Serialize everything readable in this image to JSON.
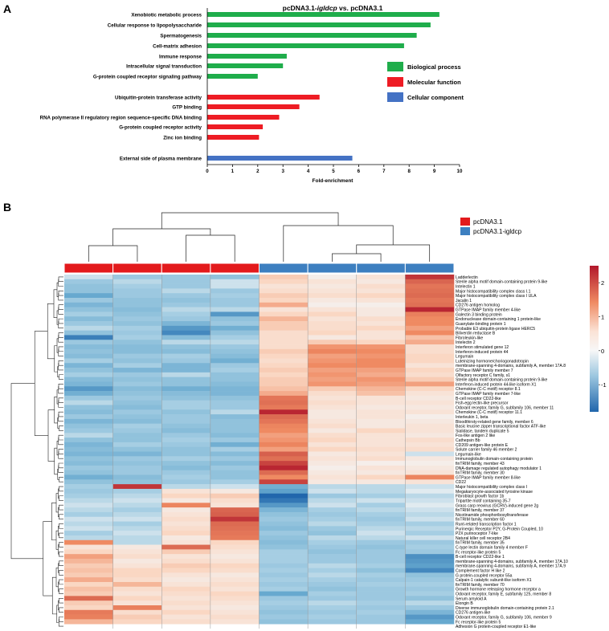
{
  "panel_a": {
    "label": "A",
    "title_prefix": "pcDNA3.1-",
    "title_italic": "igldcp",
    "title_suffix": " vs. pcDNA3.1",
    "xlabel": "Fold-enrichment"
  },
  "panel_b": {
    "label": "B"
  },
  "colors": {
    "bp": "#1fad4b",
    "mf": "#ee1c24",
    "cc": "#4472c4",
    "control": "#e31a1c",
    "treated": "#3d7fc0"
  },
  "chart_data": [
    {
      "type": "bar",
      "orientation": "horizontal",
      "xlim": [
        0,
        10
      ],
      "xticks": [
        "0",
        "1",
        "2",
        "3",
        "4",
        "5",
        "6",
        "7",
        "8",
        "9",
        "10"
      ],
      "xlabel": "Fold-enrichment",
      "legend": {
        "placement": "right",
        "entries": [
          "Biological process",
          "Molecular function",
          "Cellular component"
        ]
      },
      "series": [
        {
          "name": "Biological process",
          "categories": [
            "Xenobiotic metabolic process",
            "Cellular response to lipopolysaccharide",
            "Spermatogenesis",
            "Cell-matrix adhesion",
            "Immune response",
            "Intracellular signal transduction",
            "G-protein coupled receptor signaling pathway"
          ],
          "values": [
            9.2,
            8.85,
            8.3,
            7.8,
            3.15,
            3.0,
            2.0
          ]
        },
        {
          "name": "Molecular function",
          "categories": [
            "Ubiquitin-protein transferase activity",
            "GTP binding",
            "RNA polymerase II regulatory region sequence-specific DNA binding",
            "G-protein coupled receptor activity",
            "Zinc ion binding"
          ],
          "values": [
            4.45,
            3.65,
            2.85,
            2.2,
            2.05
          ]
        },
        {
          "name": "Cellular component",
          "categories": [
            "External side of plasma membrane"
          ],
          "values": [
            5.75
          ]
        }
      ]
    },
    {
      "type": "heatmap",
      "legend": [
        "pcDNA3.1",
        "pcDNA3.1-igldcp"
      ],
      "column_groups": [
        "pcDNA3.1",
        "pcDNA3.1",
        "pcDNA3.1",
        "pcDNA3.1",
        "pcDNA3.1-igldcp",
        "pcDNA3.1-igldcp",
        "pcDNA3.1-igldcp",
        "pcDNA3.1-igldcp"
      ],
      "colorbar": {
        "min": -1.8,
        "max": 2.5,
        "ticks": [
          "2",
          "1",
          "0",
          "-1"
        ]
      },
      "rows": [
        "Ladderlectin",
        "Sterile alpha motif domain-containing protein 9-like",
        "Intelectin 1",
        "Major histocompatibility complex class I.1",
        "Major histocompatibility complex class I ULA",
        "Jacalin 1",
        "CD276 antigen homolog",
        "GTPase IMAP family member 4-like",
        "Galectin 3 binding protein",
        "Endonuclease domain-containing 1 protein-like",
        "Guanylate-binding protein 1",
        "Probable E3 ubiquitin-protein ligase HERC5",
        "Biliverdin reductase B",
        "Fibroleukin-like",
        "Intelectin 2",
        "Interferon stimulated gene 12",
        "Interferon-induced protein 44",
        "Legumain",
        "Luteinizing hormone/choriogonadotropin",
        "membrane-spanning 4-domains, subfamily A, member 17A.8",
        "GTPase IMAP family member 7",
        "Olfactory receptor C family, s1",
        "Sterile alpha motif domain-containing protein 9-like",
        "Interferon-induced protein 44-like isoform X1",
        "Chemokine (C-C motif) receptor 8.1",
        "GTPase IMAP family member 7-like",
        "B-cell receptor CD22-like",
        "Fish-egg lectin-like precursor",
        "Odorant receptor, family G, subfamily 106, member 11",
        "Chemokine (C-C motif) receptor 11.1",
        "Interleukin 1, beta",
        "Bloodthirsty-related gene family, member 6",
        "Basic leucine zipper transcriptional factor ATF-like",
        "Sialidase, tandem duplicate 5",
        "Fos-like antigen 2 like",
        "Cathepsin Bb",
        "CD209 antigen-like protein E",
        "Solute carrier family 46 member 2",
        "Legumain-like",
        "Immunoglobulin domain-containing protein",
        "finTRIM family, member 43",
        "DNA-damage regulated autophagy modulator 1",
        "finTRIM family, member 30",
        "GTPase IMAP family member 8-like",
        "CD22",
        "Major histocompatibility complex class I",
        "Megakaryocyte-associated tyrosine kinase",
        "Fibroblast growth factor 1b",
        "Tripartite motif containing 35-7",
        "Grass carp reovirus (GCRV)-induced gene 2g",
        "finTRIM family, member 37",
        "Nicotinamide phosphoribosyltransferase",
        "finTRIM family, member 60",
        "Runt-related transcription factor 1",
        "Purinergic Receptor P2Y, G-Protein Coupled, 10",
        "P2X purinoceptor 7-like",
        "Natural killer cell receptor 2B4",
        "finTRIM family, member 35",
        "C-type lectin domain family 4 member F",
        "Fc receptor-like protein 5",
        "B-cell receptor CD22-like 1",
        "membrane-spanning 4-domains, subfamily A, member 17A.10",
        "membrane-spanning 4-domains, subfamily A, member 17A.9",
        "Complement factor H like 2",
        "G protein-coupled receptor 55a",
        "Calpain-1 catalytic subunit-like isoform X1",
        "finTRIM family, member 70",
        "Growth hormone releasing hormone receptor a",
        "Odorant receptor, family E, subfamily 125, member 8",
        "Serum amyloid A",
        "Elongin B",
        "Diverse immunoglobulin domain-containing protein 2.1",
        "CD276 antigen-like",
        "Odorant receptor, family G, subfamily 106, member 9",
        "Fc receptor-like protein 5",
        "Adhesion G protein-coupled receptor E1-like"
      ],
      "values": [
        [
          -0.2,
          -0.5,
          -0.5,
          -0.6,
          0.6,
          0.1,
          0.3,
          2.3
        ],
        [
          -0.5,
          -0.3,
          -0.5,
          -0.2,
          0.5,
          0.3,
          0.2,
          1.9
        ],
        [
          -0.6,
          -0.4,
          -0.5,
          -0.2,
          0.3,
          0.2,
          0.4,
          1.6
        ],
        [
          -0.6,
          -0.5,
          -0.3,
          -0.5,
          0.4,
          0.3,
          0.3,
          1.7
        ],
        [
          -1.0,
          -0.5,
          -0.5,
          -0.4,
          0.6,
          0.4,
          0.5,
          1.8
        ],
        [
          -0.5,
          -0.6,
          -0.6,
          -0.5,
          0.5,
          0.2,
          0.3,
          1.6
        ],
        [
          -0.8,
          -0.6,
          -0.5,
          -0.5,
          0.9,
          0.1,
          0.1,
          1.7
        ],
        [
          -0.6,
          -0.7,
          -0.3,
          -0.3,
          0.3,
          0.3,
          0.2,
          2.4
        ],
        [
          -0.4,
          -0.6,
          -0.4,
          -1.2,
          0.5,
          0.5,
          0.2,
          1.4
        ],
        [
          -0.7,
          -0.5,
          -0.5,
          -0.6,
          0.8,
          0.3,
          0.4,
          1.2
        ],
        [
          -0.5,
          -0.6,
          -0.8,
          -0.5,
          0.6,
          0.4,
          0.3,
          1.2
        ],
        [
          -0.3,
          -0.4,
          -1.2,
          -0.9,
          0.6,
          0.4,
          0.5,
          1.0
        ],
        [
          -0.6,
          -0.5,
          -1.4,
          -0.6,
          0.4,
          0.5,
          0.3,
          1.2
        ],
        [
          -1.5,
          -0.4,
          -0.7,
          -0.4,
          0.4,
          0.2,
          0.3,
          0.7
        ],
        [
          -0.5,
          -0.6,
          -0.3,
          -0.3,
          0.4,
          0.6,
          0.5,
          0.9
        ],
        [
          -0.7,
          -0.7,
          -0.6,
          -0.5,
          0.4,
          1.1,
          1.1,
          0.4
        ],
        [
          -0.6,
          -0.7,
          -0.7,
          -0.6,
          0.6,
          1.3,
          1.2,
          0.4
        ],
        [
          -0.7,
          -0.5,
          -0.4,
          -0.7,
          0.5,
          1.0,
          1.1,
          0.5
        ],
        [
          -0.4,
          -0.6,
          -0.5,
          -0.9,
          0.4,
          1.1,
          1.2,
          0.5
        ],
        [
          -0.8,
          -0.4,
          -0.8,
          -0.5,
          0.5,
          1.2,
          1.2,
          0.3
        ],
        [
          -0.6,
          -0.8,
          -0.8,
          -0.4,
          0.6,
          1.0,
          1.0,
          0.5
        ],
        [
          -0.4,
          -0.5,
          -0.3,
          -0.6,
          0.5,
          1.1,
          0.9,
          0.4
        ],
        [
          -0.7,
          -0.6,
          -0.6,
          -0.6,
          0.6,
          1.0,
          1.1,
          0.6
        ],
        [
          -0.8,
          -0.5,
          -0.6,
          -0.7,
          0.6,
          1.1,
          1.0,
          1.0
        ],
        [
          -1.2,
          -0.7,
          -0.9,
          -0.8,
          0.7,
          0.6,
          0.8,
          0.5
        ],
        [
          -0.9,
          -0.6,
          -0.7,
          -0.8,
          0.9,
          0.4,
          0.7,
          0.3
        ],
        [
          -0.5,
          -0.5,
          -0.6,
          -0.6,
          1.6,
          0.3,
          0.3,
          0.2
        ],
        [
          -0.3,
          -0.6,
          -0.4,
          -0.5,
          1.7,
          0.4,
          0.3,
          0.3
        ],
        [
          -0.6,
          -0.7,
          -0.4,
          -0.5,
          1.5,
          0.3,
          0.2,
          0.2
        ],
        [
          -0.7,
          -0.5,
          -0.6,
          -0.3,
          2.4,
          0.2,
          0.3,
          0.3
        ],
        [
          -0.5,
          -0.6,
          -0.5,
          -0.7,
          1.8,
          0.2,
          0.3,
          0.1
        ],
        [
          -0.8,
          -0.7,
          -0.5,
          -0.6,
          1.6,
          0.3,
          0.2,
          0.2
        ],
        [
          -0.6,
          -0.4,
          -0.6,
          -0.6,
          1.3,
          0.4,
          0.2,
          0.3
        ],
        [
          -0.5,
          -0.5,
          -0.7,
          -0.6,
          1.2,
          0.2,
          0.5,
          0.3
        ],
        [
          -0.3,
          -0.6,
          -0.5,
          -0.7,
          1.0,
          0.4,
          0.3,
          0.2
        ],
        [
          -0.6,
          -0.6,
          -0.4,
          -0.5,
          1.1,
          0.5,
          0.3,
          0.4
        ],
        [
          -0.8,
          -0.4,
          -0.5,
          -0.9,
          1.3,
          0.3,
          0.3,
          0.3
        ],
        [
          -0.7,
          -0.6,
          -0.6,
          -0.4,
          1.0,
          0.5,
          0.4,
          0.4
        ],
        [
          -0.8,
          -0.8,
          -0.6,
          -0.7,
          2.0,
          0.2,
          0.3,
          -0.2
        ],
        [
          -0.6,
          -0.5,
          -0.4,
          -0.5,
          1.7,
          0.3,
          0.4,
          0.2
        ],
        [
          -0.7,
          -0.6,
          -0.6,
          -0.7,
          2.2,
          0.2,
          0.1,
          0.1
        ],
        [
          -0.5,
          -0.5,
          -0.7,
          -0.5,
          2.4,
          0.1,
          0.3,
          0.2
        ],
        [
          -0.6,
          -0.5,
          -0.5,
          -0.6,
          1.8,
          0.2,
          0.2,
          0.3
        ],
        [
          -0.9,
          -0.7,
          -0.4,
          -0.6,
          1.2,
          0.3,
          0.5,
          1.3
        ],
        [
          -0.6,
          -0.6,
          -0.5,
          -0.4,
          2.2,
          0.2,
          0.2,
          0.3
        ],
        [
          -0.4,
          2.3,
          -0.3,
          -0.2,
          -0.9,
          -0.3,
          -0.3,
          -0.2
        ],
        [
          -0.5,
          -0.4,
          0.3,
          0.2,
          -1.1,
          -0.2,
          -0.3,
          -0.1
        ],
        [
          -0.4,
          -0.3,
          0.5,
          0.6,
          -1.8,
          -0.5,
          -0.4,
          -0.3
        ],
        [
          -0.3,
          -0.2,
          0.2,
          0.4,
          -1.6,
          -0.3,
          -0.2,
          -0.2
        ],
        [
          -0.2,
          -0.3,
          1.3,
          0.3,
          -1.2,
          -0.2,
          -0.4,
          -0.1
        ],
        [
          -0.3,
          -0.4,
          0.2,
          1.9,
          -0.8,
          -0.4,
          -0.3,
          -0.2
        ],
        [
          -0.4,
          -0.3,
          0.3,
          2.0,
          -0.6,
          -0.5,
          -0.4,
          -0.3
        ],
        [
          -0.2,
          -0.2,
          0.4,
          2.3,
          -0.5,
          -0.4,
          -0.5,
          -0.2
        ],
        [
          -0.3,
          -0.4,
          0.3,
          1.8,
          -0.6,
          -0.3,
          -0.4,
          -0.4
        ],
        [
          -0.2,
          -0.3,
          0.4,
          1.7,
          -0.7,
          -0.5,
          -0.3,
          -0.3
        ],
        [
          -0.4,
          -0.2,
          0.5,
          1.6,
          -0.5,
          -0.6,
          -0.2,
          -0.4
        ],
        [
          -0.3,
          -0.3,
          0.2,
          1.5,
          -0.6,
          -0.3,
          -0.3,
          -0.2
        ],
        [
          1.2,
          -0.3,
          0.3,
          0.5,
          -0.7,
          -0.4,
          -0.5,
          -0.5
        ],
        [
          0.3,
          0.2,
          1.8,
          0.4,
          -0.6,
          -0.5,
          -0.6,
          -0.4
        ],
        [
          0.5,
          0.3,
          0.6,
          0.3,
          -0.4,
          -0.6,
          -0.5,
          -0.5
        ],
        [
          1.0,
          0.4,
          0.3,
          0.2,
          -0.4,
          -0.5,
          -0.5,
          -1.3
        ],
        [
          0.8,
          0.2,
          0.4,
          0.3,
          -0.4,
          -0.5,
          -0.5,
          -1.2
        ],
        [
          0.6,
          0.3,
          0.6,
          0.5,
          -0.5,
          -0.3,
          -0.4,
          -1.1
        ],
        [
          0.7,
          0.5,
          0.5,
          0.4,
          -0.4,
          -0.4,
          -0.6,
          -1.4
        ],
        [
          0.6,
          0.5,
          0.3,
          0.2,
          -0.5,
          -0.3,
          -0.4,
          -0.6
        ],
        [
          0.9,
          0.4,
          0.2,
          0.3,
          -0.4,
          -0.4,
          -0.5,
          -0.5
        ],
        [
          0.5,
          0.8,
          0.3,
          0.4,
          -0.5,
          -0.5,
          -0.4,
          -0.4
        ],
        [
          0.7,
          0.4,
          0.5,
          0.3,
          -0.4,
          -0.6,
          -0.5,
          -0.5
        ],
        [
          0.6,
          0.3,
          0.4,
          0.5,
          -1.0,
          -0.4,
          -0.5,
          -0.4
        ],
        [
          1.8,
          0.5,
          0.3,
          0.4,
          -0.5,
          -0.5,
          -0.5,
          -0.6
        ],
        [
          0.6,
          0.3,
          0.4,
          0.3,
          -0.4,
          -0.3,
          -0.4,
          -0.3
        ],
        [
          0.5,
          1.4,
          0.3,
          0.2,
          -0.5,
          -0.4,
          -0.5,
          -0.5
        ],
        [
          1.5,
          0.4,
          0.5,
          0.3,
          -0.6,
          -0.5,
          -0.4,
          -0.8
        ],
        [
          1.4,
          0.6,
          0.3,
          0.4,
          -0.5,
          -0.4,
          -0.5,
          -1.2
        ],
        [
          0.8,
          0.5,
          0.4,
          0.3,
          -0.6,
          -0.5,
          -0.5,
          -1.0
        ]
      ]
    }
  ]
}
